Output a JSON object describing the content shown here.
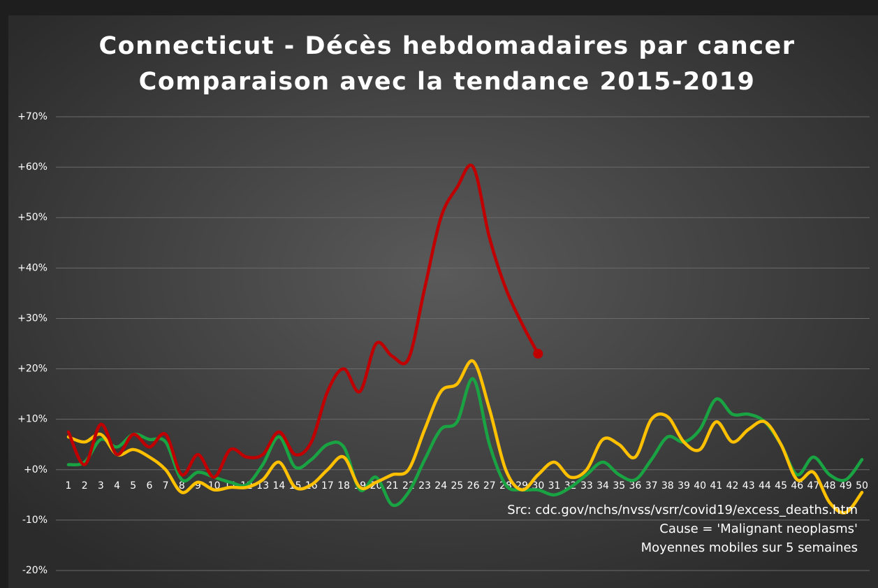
{
  "chart_data": {
    "type": "line",
    "title": "Connecticut - Décès hebdomadaires par cancer",
    "subtitle": "Comparaison avec la tendance 2015-2019",
    "categories": [
      "1",
      "2",
      "3",
      "4",
      "5",
      "6",
      "7",
      "8",
      "9",
      "10",
      "11",
      "12",
      "13",
      "14",
      "15",
      "16",
      "17",
      "18",
      "19",
      "20",
      "21",
      "22",
      "23",
      "24",
      "25",
      "26",
      "27",
      "28",
      "29",
      "30",
      "31",
      "32",
      "33",
      "34",
      "35",
      "36",
      "37",
      "38",
      "39",
      "40",
      "41",
      "42",
      "43",
      "44",
      "45",
      "46",
      "47",
      "48",
      "49",
      "50"
    ],
    "series": [
      {
        "color": "#1aa343",
        "values": [
          1,
          1.5,
          6,
          4.5,
          7,
          6,
          5.5,
          -2,
          -0.5,
          -1.5,
          -2.5,
          -3,
          1,
          6.5,
          0.5,
          2,
          5,
          4.5,
          -4,
          -1.5,
          -7,
          -4.5,
          2,
          8,
          9.5,
          18,
          5,
          -3,
          -4,
          -4,
          -5,
          -3.5,
          -1,
          1.5,
          -1,
          -2,
          2,
          6.5,
          5.5,
          8,
          14,
          11,
          11,
          9.5,
          5,
          -1,
          2.5,
          -1,
          -2,
          2
        ]
      },
      {
        "color": "#ffc000",
        "values": [
          6.5,
          5.5,
          7,
          3,
          4,
          2.5,
          0,
          -4.5,
          -2.5,
          -4,
          -3.5,
          -3.5,
          -2,
          1.5,
          -3.5,
          -3,
          0,
          2.5,
          -3.5,
          -2.5,
          -1,
          0,
          8,
          15.5,
          17,
          21.5,
          12,
          0,
          -4,
          -1,
          1.5,
          -1.5,
          0,
          6,
          5,
          2.5,
          10,
          10.5,
          5.5,
          4,
          9.5,
          5.5,
          8,
          9.5,
          5,
          -2,
          -0.5,
          -6.5,
          -8.5,
          -4.5
        ]
      },
      {
        "color": "#c00000",
        "values": [
          7.5,
          1,
          9,
          3,
          7,
          4.5,
          7,
          -1,
          3,
          -1.5,
          4,
          2.5,
          3,
          7.5,
          3,
          5.5,
          15.5,
          20,
          15.5,
          25,
          22.5,
          22,
          36,
          50,
          56,
          60,
          46,
          36,
          29,
          23,
          null,
          null,
          null,
          null,
          null,
          null,
          null,
          null,
          null,
          null,
          null,
          null,
          null,
          null,
          null,
          null,
          null,
          null,
          null,
          null
        ]
      }
    ],
    "ylim": [
      -20,
      70
    ],
    "yticks": [
      {
        "value": -20,
        "label": "-20%"
      },
      {
        "value": -10,
        "label": "-10%"
      },
      {
        "value": 0,
        "label": "+0%"
      },
      {
        "value": 10,
        "label": "+10%"
      },
      {
        "value": 20,
        "label": "+20%"
      },
      {
        "value": 30,
        "label": "+30%"
      },
      {
        "value": 40,
        "label": "+40%"
      },
      {
        "value": 50,
        "label": "+50%"
      },
      {
        "value": 60,
        "label": "+60%"
      },
      {
        "value": 70,
        "label": "+70%"
      }
    ],
    "grid": true,
    "annotations": [
      "Src: cdc.gov/nchs/nvss/vsrr/covid19/excess_deaths.htm",
      "Cause = 'Malignant neoplasms'",
      "Moyennes mobiles sur 5 semaines"
    ]
  }
}
